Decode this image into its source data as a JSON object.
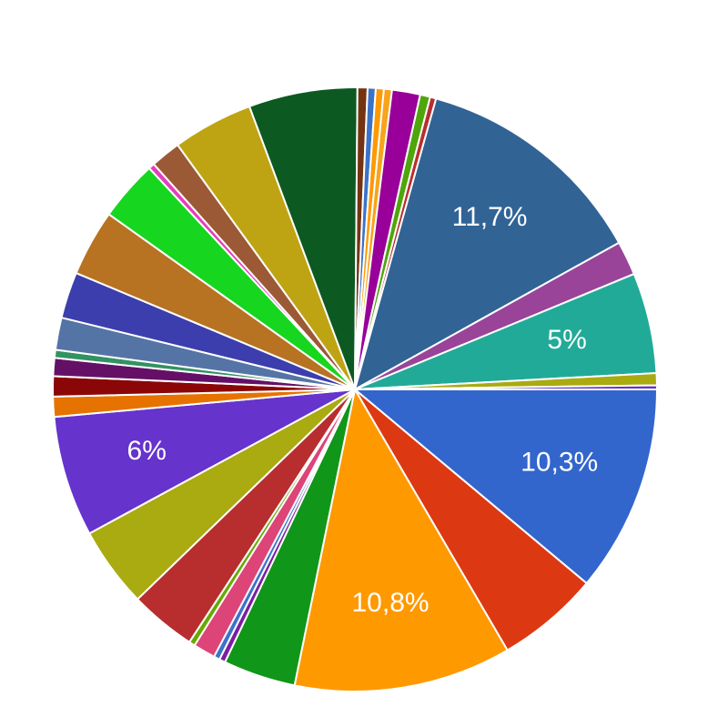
{
  "chart_data": {
    "type": "pie",
    "values": [
      10.3,
      5.1,
      10.8,
      3.6,
      0.3,
      0.3,
      1.1,
      0.3,
      3.3,
      4,
      6,
      1,
      1,
      0.9,
      0.4,
      1.6,
      2.3,
      3.3,
      3,
      0.3,
      1.5,
      4,
      5.4,
      0.5,
      0.4,
      0.4,
      0.4,
      1.4,
      0.5,
      0.3,
      11.7,
      1.7,
      5,
      0.6,
      0.2
    ],
    "value_labels": [
      "10,3%",
      null,
      "10,8%",
      null,
      null,
      null,
      null,
      null,
      null,
      null,
      "6%",
      null,
      null,
      null,
      null,
      null,
      null,
      null,
      null,
      null,
      null,
      null,
      null,
      null,
      null,
      null,
      null,
      null,
      null,
      null,
      "11,7%",
      null,
      "5%",
      null,
      null
    ],
    "colors": [
      "#3366cc",
      "#dc3912",
      "#ff9900",
      "#109618",
      "#7b1fa2",
      "#3b73c8",
      "#dd4477",
      "#66aa00",
      "#b82e2e",
      "#aaaa11",
      "#6633cc",
      "#e67300",
      "#8b0707",
      "#651067",
      "#329262",
      "#5574a6",
      "#3b3eac",
      "#b77322",
      "#16d620",
      "#e53ebd",
      "#9c5935",
      "#bea413",
      "#0c5922",
      "#743411",
      "#3b73c8",
      "#ff9900",
      "#f7a41b",
      "#990099",
      "#4ea60a",
      "#b82e2e",
      "#316395",
      "#994499",
      "#22aa99",
      "#aaaa11",
      "#6633cc"
    ]
  }
}
